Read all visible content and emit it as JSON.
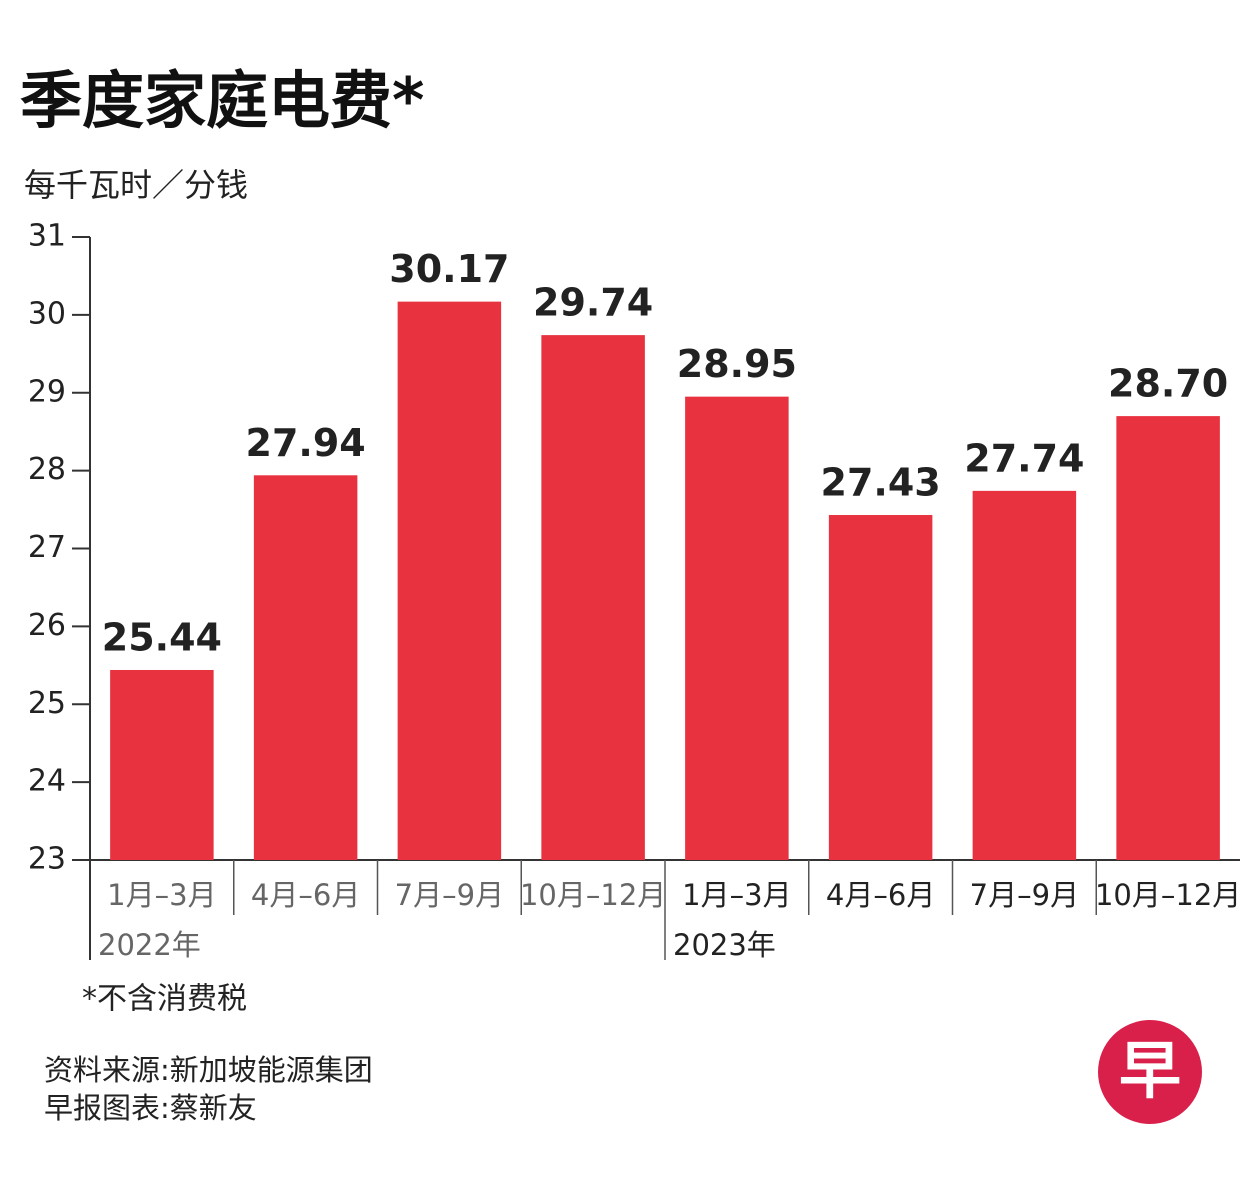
{
  "chart_data": {
    "type": "bar",
    "title": "季度家庭电费*",
    "y_label": "每千瓦时／分钱",
    "categories": [
      "1月–3月",
      "4月–6月",
      "7月–9月",
      "10月–12月",
      "1月–3月",
      "4月–6月",
      "7月–9月",
      "10月–12月"
    ],
    "x_groups": [
      "2022年",
      "2023年"
    ],
    "values": [
      25.44,
      27.94,
      30.17,
      29.74,
      28.95,
      27.43,
      27.74,
      28.7
    ],
    "value_labels": [
      "25.44",
      "27.94",
      "30.17",
      "29.74",
      "28.95",
      "27.43",
      "27.74",
      "28.70"
    ],
    "color": "#e8323f",
    "ylim": [
      23,
      31
    ],
    "yticks": [
      23,
      24,
      25,
      26,
      27,
      28,
      29,
      30,
      31
    ],
    "footnote": "*不含消费税",
    "source": "资料来源:新加坡能源集团",
    "credit": "早报图表:蔡新友",
    "logo": "早"
  }
}
